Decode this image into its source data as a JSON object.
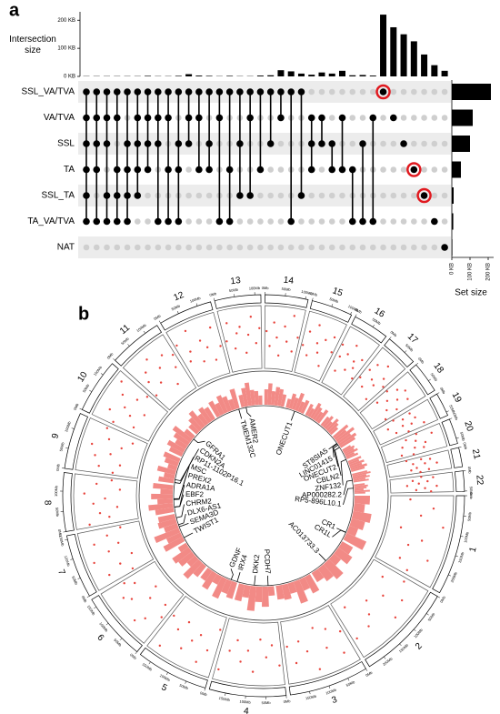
{
  "chart_data": [
    {
      "type": "upset",
      "panel_label": "a",
      "ylabel": "Intersection size",
      "set_size_label": "Set size",
      "sets": [
        "SSL_VA/TVA",
        "VA/TVA",
        "SSL",
        "TA",
        "SSL_TA",
        "TA_VA/TVA",
        "NAT"
      ],
      "set_sizes": [
        215,
        115,
        100,
        50,
        10,
        8,
        3
      ],
      "set_size_lim": [
        0,
        230
      ],
      "set_size_ticks": [
        {
          "value": 0,
          "label": "0 KB"
        },
        {
          "value": 100,
          "label": "100 KB"
        },
        {
          "value": 200,
          "label": "200 KB"
        }
      ],
      "intersections": [
        [
          0,
          1,
          2,
          3,
          4,
          5
        ],
        [
          0,
          1,
          2,
          3,
          5
        ],
        [
          0,
          1,
          2,
          4,
          5
        ],
        [
          0,
          1,
          3,
          4,
          5
        ],
        [
          0,
          2,
          3,
          4,
          5
        ],
        [
          0,
          1,
          2,
          3,
          4
        ],
        [
          0,
          1,
          2,
          3
        ],
        [
          0,
          1,
          2,
          5
        ],
        [
          0,
          1,
          3,
          5
        ],
        [
          0,
          2,
          3,
          5
        ],
        [
          0,
          1,
          2
        ],
        [
          0,
          1,
          3
        ],
        [
          0,
          2,
          3
        ],
        [
          0,
          1,
          5
        ],
        [
          0,
          3,
          5
        ],
        [
          0,
          2,
          4
        ],
        [
          0,
          1,
          4
        ],
        [
          0,
          3
        ],
        [
          0,
          2
        ],
        [
          0,
          1
        ],
        [
          0,
          5
        ],
        [
          0,
          4
        ],
        [
          1,
          2,
          3
        ],
        [
          1,
          2
        ],
        [
          2,
          3
        ],
        [
          1,
          3
        ],
        [
          3,
          5
        ],
        [
          2,
          5
        ],
        [
          1,
          5
        ],
        [
          0
        ],
        [
          1
        ],
        [
          2
        ],
        [
          3
        ],
        [
          4
        ],
        [
          5
        ],
        [
          6
        ]
      ],
      "values": [
        1,
        1,
        1,
        1,
        1,
        1,
        2,
        1,
        1,
        2,
        8,
        3,
        2,
        1,
        2,
        1,
        1,
        3,
        4,
        22,
        18,
        10,
        6,
        14,
        10,
        20,
        4,
        5,
        3,
        220,
        175,
        150,
        125,
        78,
        40,
        20
      ],
      "ylim": [
        0,
        230
      ],
      "yticks": [
        {
          "value": 0,
          "label": "0 KB"
        },
        {
          "value": 100,
          "label": "100 KB"
        },
        {
          "value": 200,
          "label": "200 KB"
        }
      ],
      "color": "#000000",
      "highlight": [
        29,
        32,
        33
      ],
      "highlight_color": "#e0191f"
    },
    {
      "type": "circos",
      "panel_label": "b",
      "color": "#e8433b",
      "density_color": "#f28a86",
      "ticks": [
        {
          "value": 0,
          "label": "0Mb"
        },
        {
          "value": 50,
          "label": "50Mb"
        },
        {
          "value": 100,
          "label": "100Mb"
        },
        {
          "value": 150,
          "label": "150Mb"
        },
        {
          "value": 200,
          "label": "200Mb"
        }
      ],
      "chromosomes": [
        {
          "name": "1",
          "length": 249,
          "density": [
            0.5,
            0.35,
            0.6,
            0.45,
            0.3,
            0.7
          ],
          "scatter": [
            0.3,
            0.7,
            0.5,
            0.9,
            0.2,
            0.6,
            0.4,
            0.8,
            0.35,
            0.55
          ]
        },
        {
          "name": "2",
          "length": 243,
          "density": [
            0.4,
            0.55,
            0.3,
            0.65,
            0.5,
            0.35
          ],
          "scatter": [
            0.6,
            0.25,
            0.75,
            0.45,
            0.85,
            0.3,
            0.5,
            0.65,
            0.15,
            0.7
          ]
        },
        {
          "name": "3",
          "length": 198,
          "density": [
            0.6,
            0.4,
            0.75,
            0.35,
            0.5,
            0.45
          ],
          "scatter": [
            0.45,
            0.8,
            0.3,
            0.6,
            0.2,
            0.9,
            0.55,
            0.35,
            0.7,
            0.4
          ]
        },
        {
          "name": "4",
          "length": 191,
          "density": [
            0.3,
            0.65,
            0.5,
            0.8,
            0.4,
            0.55
          ],
          "scatter": [
            0.7,
            0.35,
            0.55,
            0.25,
            0.8,
            0.45,
            0.65,
            0.3,
            0.5,
            0.85
          ]
        },
        {
          "name": "5",
          "length": 181,
          "density": [
            0.55,
            0.45,
            0.7,
            0.3,
            0.6,
            0.4
          ],
          "scatter": [
            0.2,
            0.6,
            0.85,
            0.4,
            0.55,
            0.75,
            0.3,
            0.5,
            0.9,
            0.35
          ]
        },
        {
          "name": "6",
          "length": 171,
          "density": [
            0.45,
            0.7,
            0.35,
            0.55,
            0.65,
            0.3
          ],
          "scatter": [
            0.5,
            0.3,
            0.7,
            0.85,
            0.4,
            0.2,
            0.65,
            0.75,
            0.45,
            0.6
          ]
        },
        {
          "name": "7",
          "length": 159,
          "density": [
            0.7,
            0.5,
            0.85,
            0.45,
            0.6,
            0.55
          ],
          "scatter": [
            0.35,
            0.75,
            0.5,
            0.25,
            0.9,
            0.6,
            0.4,
            0.8,
            0.55,
            0.3
          ]
        },
        {
          "name": "8",
          "length": 146,
          "density": [
            0.6,
            0.8,
            0.5,
            0.7,
            0.4,
            0.65
          ],
          "scatter": [
            0.8,
            0.45,
            0.6,
            0.3,
            0.7,
            0.5,
            0.85,
            0.25,
            0.65,
            0.4
          ]
        },
        {
          "name": "9",
          "length": 141,
          "density": [
            0.5,
            0.35,
            0.6,
            0.3,
            0.45,
            0.55
          ],
          "scatter": [
            0.4,
            0.65,
            0.3,
            0.75,
            0.5,
            0.85,
            0.35,
            0.6,
            0.2,
            0.7
          ]
        },
        {
          "name": "10",
          "length": 136,
          "density": [
            0.45,
            0.6,
            0.4,
            0.55,
            0.7,
            0.35
          ],
          "scatter": [
            0.65,
            0.3,
            0.8,
            0.45,
            0.6,
            0.25,
            0.75,
            0.5,
            0.9,
            0.4
          ]
        },
        {
          "name": "11",
          "length": 135,
          "density": [
            0.35,
            0.5,
            0.65,
            0.4,
            0.55,
            0.45
          ],
          "scatter": [
            0.3,
            0.55,
            0.7,
            0.4,
            0.85,
            0.6,
            0.2,
            0.75,
            0.45,
            0.65
          ]
        },
        {
          "name": "12",
          "length": 134,
          "density": [
            0.55,
            0.4,
            0.6,
            0.5,
            0.35,
            0.65
          ],
          "scatter": [
            0.75,
            0.4,
            0.55,
            0.9,
            0.3,
            0.65,
            0.5,
            0.25,
            0.8,
            0.45
          ]
        },
        {
          "name": "13",
          "length": 115,
          "density": [
            0.4,
            0.6,
            0.75,
            0.5,
            0.45,
            0.3
          ],
          "scatter": [
            0.5,
            0.8,
            0.35,
            0.6,
            0.7,
            0.25,
            0.55,
            0.85,
            0.4,
            0.65
          ]
        },
        {
          "name": "14",
          "length": 107,
          "density": [
            0.5,
            0.7,
            0.45,
            0.6,
            0.55,
            0.4
          ],
          "scatter": [
            0.6,
            0.35,
            0.75,
            0.5,
            0.2,
            0.7,
            0.45,
            0.9,
            0.3,
            0.55
          ]
        },
        {
          "name": "15",
          "length": 103,
          "density": [
            0.3,
            0.5,
            0.4,
            0.6,
            0.35,
            0.45
          ],
          "scatter": [
            0.45,
            0.7,
            0.3,
            0.85,
            0.55,
            0.4,
            0.65,
            0.2,
            0.75,
            0.5
          ]
        },
        {
          "name": "16",
          "length": 90,
          "density": [
            0.4,
            0.3,
            0.55,
            0.45,
            0.35,
            0.5
          ],
          "scatter": [
            0.7,
            0.5,
            0.25,
            0.6,
            0.8,
            0.35,
            0.55,
            0.45,
            0.65,
            0.3
          ]
        },
        {
          "name": "17",
          "length": 81,
          "density": [
            0.35,
            0.45,
            0.3,
            0.5,
            0.4,
            0.3
          ],
          "scatter": [
            0.4,
            0.6,
            0.75,
            0.3,
            0.5,
            0.85,
            0.45,
            0.65,
            0.2,
            0.55
          ]
        },
        {
          "name": "18",
          "length": 78,
          "density": [
            0.6,
            0.45,
            0.7,
            0.5,
            0.65,
            0.55
          ],
          "scatter": [
            0.55,
            0.3,
            0.7,
            0.45,
            0.8,
            0.6,
            0.35,
            0.75,
            0.5,
            0.25
          ]
        },
        {
          "name": "19",
          "length": 59,
          "density": [
            0.3,
            0.4,
            0.35,
            0.45,
            0.3,
            0.4
          ],
          "scatter": [
            0.35,
            0.65,
            0.5,
            0.2,
            0.7,
            0.45,
            0.6,
            0.3,
            0.8,
            0.5
          ]
        },
        {
          "name": "20",
          "length": 63,
          "density": [
            0.45,
            0.35,
            0.5,
            0.4,
            0.55,
            0.45
          ],
          "scatter": [
            0.6,
            0.4,
            0.85,
            0.55,
            0.3,
            0.7,
            0.5,
            0.65,
            0.25,
            0.45
          ]
        },
        {
          "name": "21",
          "length": 48,
          "density": [
            0.5,
            0.6,
            0.45,
            0.55,
            0.4,
            0.5
          ],
          "scatter": [
            0.3,
            0.55,
            0.7,
            0.4,
            0.6,
            0.8,
            0.45,
            0.35,
            0.65,
            0.5
          ]
        },
        {
          "name": "22",
          "length": 51,
          "density": [
            0.35,
            0.45,
            0.4,
            0.3,
            0.5,
            0.35
          ],
          "scatter": [
            0.5,
            0.7,
            0.35,
            0.6,
            0.45,
            0.25,
            0.75,
            0.55,
            0.4,
            0.65
          ]
        }
      ],
      "genes": [
        {
          "label": "TMEM132C",
          "chrom": "12",
          "pos": 128
        },
        {
          "label": "AMER2",
          "chrom": "13",
          "pos": 25
        },
        {
          "label": "ONECUT1",
          "chrom": "15",
          "pos": 53
        },
        {
          "label": "ST8SIA5",
          "chrom": "18",
          "pos": 44
        },
        {
          "label": "LINC01415",
          "chrom": "18",
          "pos": 47
        },
        {
          "label": "ONECUT2",
          "chrom": "18",
          "pos": 55
        },
        {
          "label": "CBLN2",
          "chrom": "18",
          "pos": 70
        },
        {
          "label": "ZNF132",
          "chrom": "19",
          "pos": 58
        },
        {
          "label": "AP000282.2",
          "chrom": "21",
          "pos": 35
        },
        {
          "label": "RP5-896L10.1",
          "chrom": "22",
          "pos": 20
        },
        {
          "label": "CR1",
          "chrom": "1",
          "pos": 207
        },
        {
          "label": "CR1L",
          "chrom": "1",
          "pos": 208
        },
        {
          "label": "AC013733.3",
          "chrom": "2",
          "pos": 140
        },
        {
          "label": "PCDH7",
          "chrom": "4",
          "pos": 31
        },
        {
          "label": "DKK2",
          "chrom": "4",
          "pos": 107
        },
        {
          "label": "IRX4",
          "chrom": "5",
          "pos": 2
        },
        {
          "label": "GDNF",
          "chrom": "5",
          "pos": 37
        },
        {
          "label": "TWIST1",
          "chrom": "7",
          "pos": 19
        },
        {
          "label": "SEMA3D",
          "chrom": "7",
          "pos": 84
        },
        {
          "label": "DLX6-AS1",
          "chrom": "7",
          "pos": 96
        },
        {
          "label": "CHRM2",
          "chrom": "7",
          "pos": 136
        },
        {
          "label": "EBF2",
          "chrom": "8",
          "pos": 26
        },
        {
          "label": "ADRA1A",
          "chrom": "8",
          "pos": 27
        },
        {
          "label": "PREX2",
          "chrom": "8",
          "pos": 68
        },
        {
          "label": "MSC",
          "chrom": "8",
          "pos": 72
        },
        {
          "label": "RP11-1102P16.1",
          "chrom": "9",
          "pos": 5
        },
        {
          "label": "CDKN2A",
          "chrom": "9",
          "pos": 21
        },
        {
          "label": "GFRA1",
          "chrom": "10",
          "pos": 117
        }
      ]
    }
  ]
}
